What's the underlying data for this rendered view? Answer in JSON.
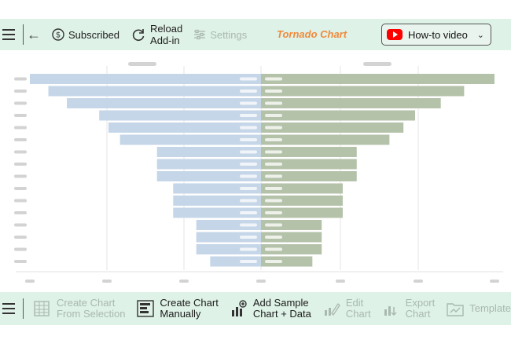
{
  "toolbar": {
    "subscribed_label": "Subscribed",
    "reload_line1": "Reload",
    "reload_line2": "Add-in",
    "settings_label": "Settings",
    "brand": "Tornado Chart",
    "howto_label": "How-to video"
  },
  "bottom": {
    "create_selection_line1": "Create Chart",
    "create_selection_line2": "From Selection",
    "create_manual_line1": "Create Chart",
    "create_manual_line2": "Manually",
    "add_sample_line1": "Add Sample",
    "add_sample_line2": "Chart + Data",
    "edit_line1": "Edit",
    "edit_line2": "Chart",
    "export_line1": "Export",
    "export_line2": "Chart",
    "template_label": "Template"
  },
  "colors": {
    "accent": "#f08a3c",
    "toolbar_bg": "#dff2e7",
    "left_bar": "#c5d6e8",
    "right_bar": "#b4c2a9",
    "youtube_red": "#ff0000"
  },
  "chart_data": {
    "type": "bar",
    "orientation": "horizontal-tornado",
    "left_values": [
      100,
      92,
      84,
      70,
      66,
      61,
      45,
      45,
      45,
      38,
      38,
      38,
      28,
      28,
      28,
      22
    ],
    "right_values": [
      100,
      87,
      77,
      66,
      61,
      55,
      41,
      41,
      41,
      35,
      35,
      35,
      26,
      26,
      26,
      22
    ],
    "xlim": [
      -100,
      100
    ],
    "grid": true
  }
}
